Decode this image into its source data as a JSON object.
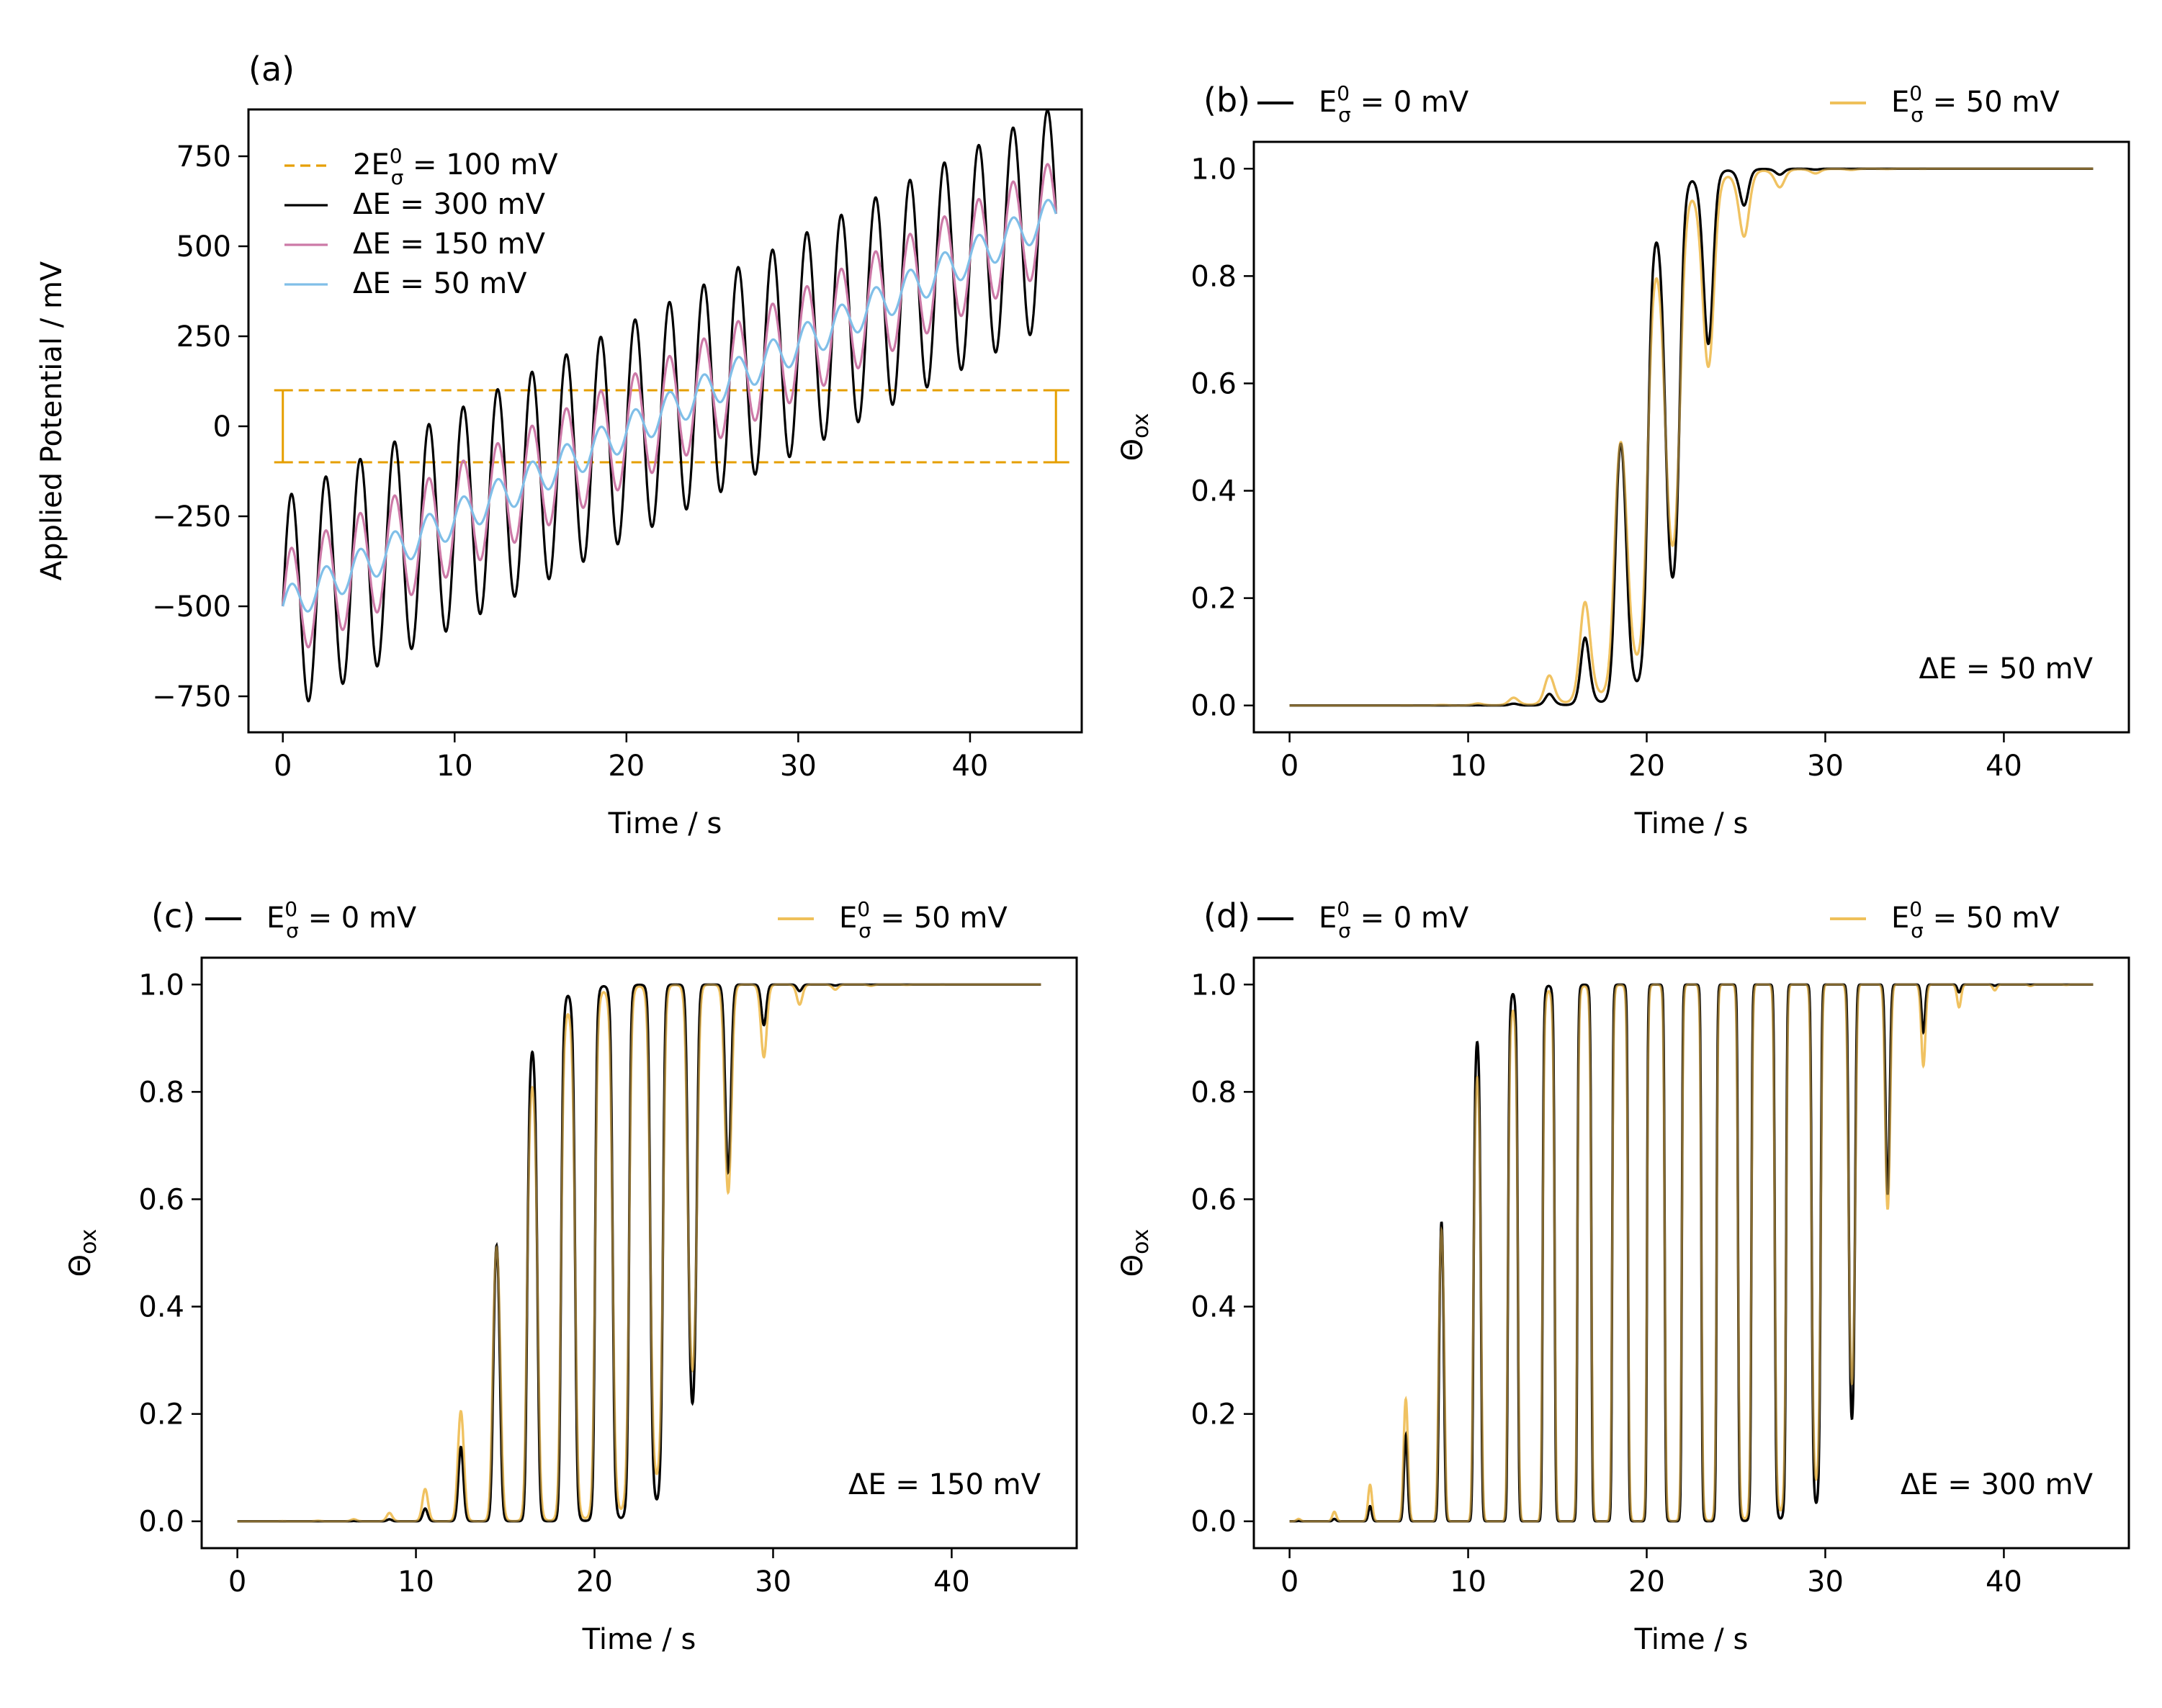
{
  "colors": {
    "black": "#000000",
    "gold": "#E69F00",
    "gold_light": "#EFC05A",
    "pink": "#CC79A7",
    "blue": "#80BFE8"
  },
  "chart_data": [
    {
      "type": "line",
      "panel_label": "(a)",
      "xlabel": "Time / s",
      "ylabel": "Applied Potential / mV",
      "xlim": [
        -2,
        46.5
      ],
      "ylim": [
        -850,
        880
      ],
      "xticks": [
        "0",
        "10",
        "20",
        "30",
        "40"
      ],
      "yticks": [
        "−750",
        "−500",
        "−250",
        "0",
        "250",
        "500",
        "750"
      ],
      "legend_position": "upper-left",
      "period_s": 2.0,
      "start_mV": -500,
      "end_mV": 590,
      "series": [
        {
          "name": "ΔE = 300 mV",
          "color": "black",
          "amplitude_mV": 300
        },
        {
          "name": "ΔE = 150 mV",
          "color": "pink",
          "amplitude_mV": 150
        },
        {
          "name": "ΔE = 50 mV",
          "color": "blue",
          "amplitude_mV": 50
        }
      ],
      "reference": {
        "name": "2E⁰σ = 100 mV",
        "color": "gold",
        "levels_mV": [
          -100,
          100
        ],
        "x_range": [
          0,
          45
        ]
      }
    },
    {
      "type": "line",
      "panel_label": "(b)",
      "xlabel": "Time / s",
      "ylabel": "Θox",
      "xlim": [
        -2,
        47
      ],
      "ylim": [
        -0.05,
        1.05
      ],
      "xticks": [
        "0",
        "10",
        "20",
        "30",
        "40"
      ],
      "yticks": [
        "0.0",
        "0.2",
        "0.4",
        "0.6",
        "0.8",
        "1.0"
      ],
      "annotation": "ΔE = 50 mV",
      "amplitude_mV": 50,
      "series": [
        {
          "name": "E⁰σ = 0 mV",
          "color": "black",
          "e0s_mV": 0
        },
        {
          "name": "E⁰σ = 50 mV",
          "color": "gold_light",
          "e0s_mV": 50
        }
      ]
    },
    {
      "type": "line",
      "panel_label": "(c)",
      "xlabel": "Time / s",
      "ylabel": "Θox",
      "xlim": [
        -2,
        47
      ],
      "ylim": [
        -0.05,
        1.05
      ],
      "xticks": [
        "0",
        "10",
        "20",
        "30",
        "40"
      ],
      "yticks": [
        "0.0",
        "0.2",
        "0.4",
        "0.6",
        "0.8",
        "1.0"
      ],
      "annotation": "ΔE = 150 mV",
      "amplitude_mV": 150,
      "series": [
        {
          "name": "E⁰σ = 0 mV",
          "color": "black",
          "e0s_mV": 0
        },
        {
          "name": "E⁰σ = 50 mV",
          "color": "gold_light",
          "e0s_mV": 50
        }
      ]
    },
    {
      "type": "line",
      "panel_label": "(d)",
      "xlabel": "Time / s",
      "ylabel": "Θox",
      "xlim": [
        -2,
        47
      ],
      "ylim": [
        -0.05,
        1.05
      ],
      "xticks": [
        "0",
        "10",
        "20",
        "30",
        "40"
      ],
      "yticks": [
        "0.0",
        "0.2",
        "0.4",
        "0.6",
        "0.8",
        "1.0"
      ],
      "annotation": "ΔE = 300 mV",
      "amplitude_mV": 300,
      "series": [
        {
          "name": "E⁰σ = 0 mV",
          "color": "black",
          "e0s_mV": 0
        },
        {
          "name": "E⁰σ = 50 mV",
          "color": "gold_light",
          "e0s_mV": 50
        }
      ]
    }
  ]
}
